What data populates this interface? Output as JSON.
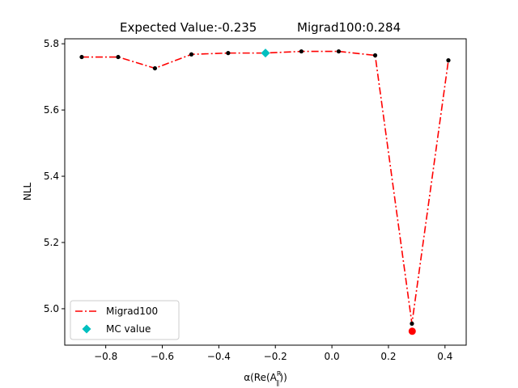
{
  "chart_data": {
    "type": "line",
    "title_left": "Expected Value:-0.235",
    "title_right": "Migrad100:0.284",
    "xlabel_base": "α(Re(A",
    "xlabel_sup": "R",
    "xlabel_sub": "∥",
    "xlabel_end": "))",
    "ylabel": "NLL",
    "xlim": [
      -0.945,
      0.475
    ],
    "ylim": [
      4.89,
      5.815
    ],
    "xticks": [
      -0.8,
      -0.6,
      -0.4,
      -0.2,
      0.0,
      0.2,
      0.4
    ],
    "xtick_labels": [
      "−0.8",
      "−0.6",
      "−0.4",
      "−0.2",
      "0.0",
      "0.2",
      "0.4"
    ],
    "yticks": [
      5.0,
      5.2,
      5.4,
      5.6,
      5.8
    ],
    "ytick_labels": [
      "5.0",
      "5.2",
      "5.4",
      "5.6",
      "5.8"
    ],
    "series": [
      {
        "name": "Migrad100",
        "color": "#ff0000",
        "style": "dash-dot",
        "x": [
          -0.885,
          -0.756,
          -0.626,
          -0.497,
          -0.367,
          -0.238,
          -0.108,
          0.024,
          0.153,
          0.283,
          0.412
        ],
        "y": [
          5.76,
          5.76,
          5.726,
          5.768,
          5.772,
          5.772,
          5.777,
          5.777,
          5.765,
          4.955,
          5.75
        ]
      }
    ],
    "points_color": "#000000",
    "mc_value": {
      "name": "MC value",
      "x": -0.235,
      "y": 5.772,
      "color": "#00bfbf",
      "marker": "diamond"
    },
    "minimum": {
      "x": 0.284,
      "y": 4.932,
      "color": "#ff0000"
    },
    "legend_position": "lower-left",
    "grid": false
  }
}
